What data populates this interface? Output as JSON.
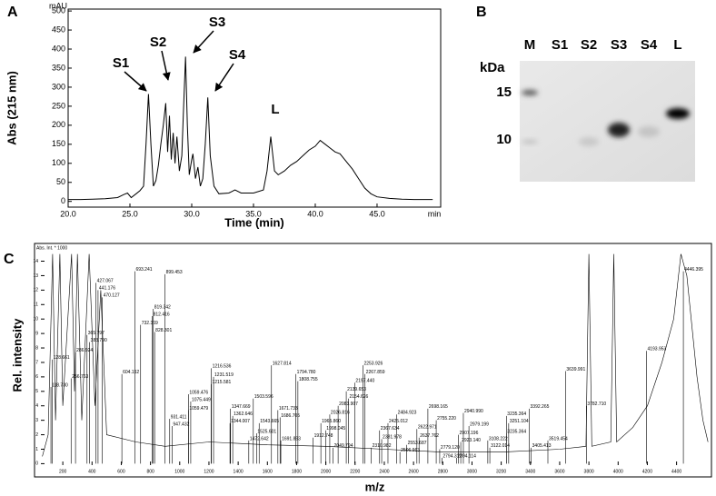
{
  "panel_labels": [
    "A",
    "B",
    "C"
  ],
  "chart_data": [
    {
      "type": "line",
      "xlabel": "Time (min)",
      "ylabel": "Abs (215 nm)",
      "x_unit": "min",
      "y_unit": "mAU",
      "color": "#000000",
      "xlim": [
        20,
        50.15
      ],
      "ylim": [
        -15,
        505
      ],
      "xticks": [
        {
          "value": 20,
          "label": "20.0"
        },
        {
          "value": 25,
          "label": "25.0"
        },
        {
          "value": 30,
          "label": "30.0"
        },
        {
          "value": 35,
          "label": "35.0"
        },
        {
          "value": 40,
          "label": "40.0"
        },
        {
          "value": 45,
          "label": "45.0"
        }
      ],
      "yticks": [
        0,
        50,
        100,
        150,
        200,
        250,
        300,
        350,
        400,
        450,
        500
      ],
      "annotations": [
        "S1",
        "S2",
        "S3",
        "S4",
        "L"
      ],
      "x": [
        20.0,
        21.0,
        22.0,
        23.0,
        24.0,
        24.5,
        24.8,
        25.1,
        25.5,
        25.8,
        26.1,
        26.3,
        26.5,
        26.7,
        26.9,
        27.1,
        27.3,
        27.5,
        27.7,
        27.9,
        28.05,
        28.2,
        28.35,
        28.5,
        28.65,
        28.8,
        29.0,
        29.2,
        29.35,
        29.5,
        29.65,
        29.8,
        30.0,
        30.1,
        30.3,
        30.5,
        30.7,
        30.9,
        31.1,
        31.3,
        31.5,
        31.8,
        32.2,
        33.0,
        33.5,
        34.0,
        35.0,
        35.8,
        36.1,
        36.4,
        36.7,
        37.0,
        37.5,
        38.0,
        38.5,
        39.0,
        39.5,
        40.0,
        40.4,
        40.8,
        41.2,
        41.6,
        42.0,
        42.5,
        43.0,
        43.5,
        44.0,
        44.5,
        45.0,
        46.0,
        47.0,
        48.0,
        49.5
      ],
      "values": [
        5,
        5,
        6,
        7,
        10,
        18,
        22,
        10,
        20,
        28,
        40,
        150,
        282,
        150,
        40,
        55,
        95,
        150,
        200,
        258,
        130,
        225,
        110,
        180,
        100,
        170,
        80,
        120,
        250,
        380,
        200,
        70,
        110,
        125,
        60,
        90,
        40,
        60,
        150,
        273,
        120,
        40,
        20,
        22,
        30,
        22,
        22,
        30,
        80,
        170,
        80,
        70,
        80,
        95,
        105,
        120,
        135,
        145,
        160,
        150,
        140,
        130,
        125,
        105,
        85,
        60,
        35,
        20,
        12,
        8,
        6,
        5,
        5
      ]
    },
    {
      "type": "spectrum",
      "xlabel": "m/z",
      "ylabel": "Rel. intensity",
      "y_note": "Abs. Int. * 1000",
      "color": "#000000",
      "xlim": [
        50,
        4620
      ],
      "ylim": [
        -0.1,
        15.1
      ],
      "xticks": [
        200,
        400,
        600,
        800,
        1000,
        1200,
        1400,
        1600,
        1800,
        2000,
        2200,
        2400,
        2600,
        2800,
        3000,
        3200,
        3400,
        3600,
        3800,
        4000,
        4200,
        4400
      ],
      "yticks": [
        0,
        1,
        2,
        3,
        4,
        5,
        6,
        7,
        8,
        9,
        10,
        11,
        12,
        13,
        14
      ],
      "x": [
        60,
        100,
        130,
        150,
        180,
        200,
        260,
        280,
        300,
        330,
        380,
        420,
        460,
        500,
        700,
        900,
        1200,
        1600,
        2000,
        2400,
        2800,
        3200,
        3600,
        3780,
        3800,
        3820,
        3950,
        3970,
        3990,
        4100,
        4200,
        4300,
        4380,
        4430,
        4470,
        4500,
        4540,
        4580,
        4615
      ],
      "values": [
        0.5,
        2,
        14.5,
        3,
        14.5,
        4,
        14.5,
        5,
        14.5,
        3,
        14.5,
        4,
        12,
        2,
        1.5,
        1.2,
        1.5,
        1.3,
        1.2,
        1.0,
        0.8,
        0.8,
        1.0,
        1.2,
        14.5,
        1.2,
        1.5,
        14.5,
        1.5,
        2.5,
        4,
        7,
        10,
        14.5,
        13,
        10,
        6,
        3,
        1.5
      ],
      "peaks": {
        "x": [
          427.067,
          441.176,
          470.127,
          693.241,
          899.453,
          819.342,
          812.416,
          732.369,
          828.301,
          365.797,
          383.79,
          286.924,
          128.661,
          256.763,
          118.73,
          604.152,
          1216.536,
          1231.519,
          1215.581,
          1059.476,
          1075.449,
          1059.479,
          931.411,
          947.432,
          1347.669,
          1362.646,
          1344.007,
          1503.596,
          1543.665,
          1525.601,
          1472.642,
          1627.814,
          1794.78,
          1808.755,
          1671.733,
          1686.705,
          1691.893,
          1965.86,
          1998.045,
          1912.748,
          2049.794,
          2253.926,
          2267.859,
          2197.44,
          2139.653,
          2154.626,
          2083.907,
          2026.816,
          2425.012,
          2484.923,
          2367.634,
          2381.978,
          2310.982,
          2622.971,
          2637.762,
          2553.687,
          2506.963,
          2698.165,
          2755.22,
          2779.12,
          2794.312,
          2940.99,
          2979.199,
          2907.196,
          2923.14,
          2894.114,
          3108.222,
          3122.014,
          3235.364,
          3251.104,
          3235.364,
          3392.265,
          3405.413,
          3519.454,
          3639.991,
          3782.71,
          4193.953,
          4446.395
        ],
        "x_labels": [
          "427.067",
          "441.176",
          "470.127",
          "693.241",
          "899.453",
          "819.342",
          "812.416",
          "732.369",
          "828.301",
          "365.797",
          "383.790",
          "286.924",
          "128.661",
          "256.763",
          "118.730",
          "604.152",
          "1216.536",
          "1231.519",
          "1215.581",
          "1059.476",
          "1075.449",
          "1059.479",
          "931.411",
          "947.432",
          "1347.669",
          "1362.646",
          "1344.007",
          "1503.596",
          "1543.665",
          "1525.601",
          "1472.642",
          "1627.814",
          "1794.780",
          "1808.755",
          "1671.733",
          "1686.705",
          "1691.893",
          "1965.860",
          "1998.045",
          "1912.748",
          "2049.794",
          "2253.926",
          "2267.859",
          "2197.440",
          "2139.653",
          "2154.626",
          "2083.907",
          "2026.816",
          "2425.012",
          "2484.923",
          "2367.634",
          "2381.978",
          "2310.982",
          "2622.971",
          "2637.762",
          "2553.687",
          "2506.963",
          "2698.165",
          "2755.220",
          "2779.120",
          "2794.312",
          "2940.990",
          "2979.199",
          "2907.196",
          "2923.140",
          "2894.114",
          "3108.222",
          "3122.014",
          "3235.364",
          "3251.104",
          "3235.364",
          "3392.265",
          "3405.413",
          "3519.454",
          "3639.991",
          "3782.710",
          "4193.953",
          "4446.395"
        ],
        "values": [
          12.5,
          12.0,
          11.5,
          13.3,
          13.1,
          10.7,
          10.2,
          9.6,
          9.1,
          8.9,
          8.4,
          7.7,
          7.2,
          5.9,
          5.3,
          6.2,
          6.6,
          6.0,
          5.5,
          4.8,
          4.3,
          3.7,
          3.1,
          2.6,
          3.8,
          3.3,
          2.8,
          4.5,
          2.8,
          2.1,
          1.6,
          6.8,
          6.2,
          5.7,
          3.7,
          3.2,
          1.6,
          2.8,
          2.3,
          1.8,
          1.1,
          6.8,
          6.2,
          5.6,
          5.0,
          4.5,
          4.0,
          3.4,
          2.8,
          3.4,
          2.3,
          1.7,
          1.1,
          2.4,
          1.8,
          1.3,
          0.8,
          3.8,
          3.0,
          1.0,
          0.4,
          3.5,
          2.6,
          2.0,
          1.5,
          0.4,
          1.6,
          1.1,
          3.3,
          2.8,
          2.1,
          3.8,
          1.1,
          1.6,
          6.4,
          4.0,
          7.8,
          13.3
        ]
      }
    }
  ],
  "gel": {
    "unit": "kDa",
    "lanes": [
      "M",
      "S1",
      "S2",
      "S3",
      "S4",
      "L"
    ],
    "markers": [
      15,
      10
    ]
  }
}
